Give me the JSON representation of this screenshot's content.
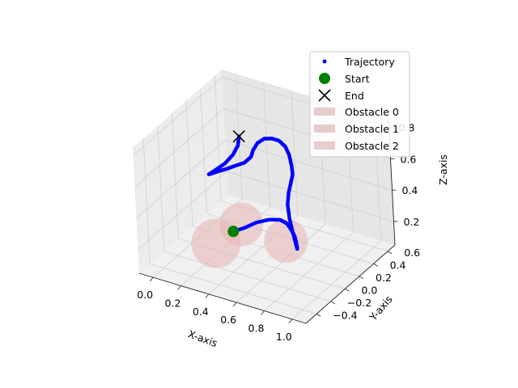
{
  "chart_data": {
    "type": "scatter",
    "projection": "3d",
    "title": "",
    "xlabel": "X-axis",
    "ylabel": "Y-axis",
    "zlabel": "Z-axis",
    "xlim": [
      -0.1,
      1.1
    ],
    "ylim": [
      -0.55,
      0.7
    ],
    "zlim": [
      0.05,
      0.85
    ],
    "x_ticks": [
      "0.0",
      "0.2",
      "0.4",
      "0.6",
      "0.8",
      "1.0"
    ],
    "y_ticks": [
      "−0.4",
      "−0.2",
      "0.0",
      "0.2",
      "0.4",
      "0.6"
    ],
    "z_ticks": [
      "0.2",
      "0.4",
      "0.6",
      "0.8"
    ],
    "grid": true,
    "legend_position": "top-right",
    "colors": {
      "trajectory": "#0000ff",
      "start": "#008000",
      "end": "#000000",
      "obstacle": "#e8b4b4"
    },
    "series": [
      {
        "name": "Trajectory",
        "marker": "dot",
        "points": [
          [
            0.25,
            0.1,
            0.15
          ],
          [
            0.32,
            0.13,
            0.18
          ],
          [
            0.38,
            0.18,
            0.21
          ],
          [
            0.45,
            0.22,
            0.23
          ],
          [
            0.52,
            0.24,
            0.24
          ],
          [
            0.58,
            0.22,
            0.24
          ],
          [
            0.63,
            0.18,
            0.23
          ],
          [
            0.67,
            0.15,
            0.21
          ],
          [
            0.69,
            0.13,
            0.18
          ],
          [
            0.7,
            0.12,
            0.15
          ],
          [
            0.68,
            0.14,
            0.17
          ],
          [
            0.64,
            0.18,
            0.22
          ],
          [
            0.6,
            0.22,
            0.28
          ],
          [
            0.57,
            0.26,
            0.34
          ],
          [
            0.56,
            0.3,
            0.4
          ],
          [
            0.57,
            0.32,
            0.46
          ],
          [
            0.58,
            0.33,
            0.51
          ],
          [
            0.57,
            0.34,
            0.56
          ],
          [
            0.55,
            0.35,
            0.62
          ],
          [
            0.52,
            0.36,
            0.66
          ],
          [
            0.47,
            0.37,
            0.68
          ],
          [
            0.42,
            0.37,
            0.68
          ],
          [
            0.37,
            0.36,
            0.67
          ],
          [
            0.33,
            0.34,
            0.64
          ],
          [
            0.31,
            0.31,
            0.6
          ],
          [
            0.31,
            0.28,
            0.57
          ],
          [
            0.28,
            0.24,
            0.54
          ],
          [
            0.23,
            0.21,
            0.52
          ],
          [
            0.17,
            0.19,
            0.49
          ],
          [
            0.12,
            0.17,
            0.47
          ],
          [
            0.08,
            0.16,
            0.45
          ],
          [
            0.06,
            0.16,
            0.44
          ],
          [
            0.1,
            0.18,
            0.47
          ],
          [
            0.16,
            0.2,
            0.52
          ],
          [
            0.21,
            0.22,
            0.58
          ],
          [
            0.24,
            0.24,
            0.64
          ],
          [
            0.24,
            0.26,
            0.69
          ]
        ]
      },
      {
        "name": "Start",
        "marker": "circle",
        "points": [
          [
            0.25,
            0.1,
            0.15
          ]
        ]
      },
      {
        "name": "End",
        "marker": "x",
        "points": [
          [
            0.24,
            0.26,
            0.69
          ]
        ]
      }
    ],
    "obstacles": [
      {
        "name": "Obstacle 0",
        "center": [
          0.2,
          -0.05,
          0.12
        ],
        "radius": 0.17
      },
      {
        "name": "Obstacle 1",
        "center": [
          0.3,
          0.12,
          0.2
        ],
        "radius": 0.15
      },
      {
        "name": "Obstacle 2",
        "center": [
          0.62,
          0.12,
          0.18
        ],
        "radius": 0.15
      }
    ],
    "legend": [
      "Trajectory",
      "Start",
      "End",
      "Obstacle 0",
      "Obstacle 1",
      "Obstacle 2"
    ]
  }
}
